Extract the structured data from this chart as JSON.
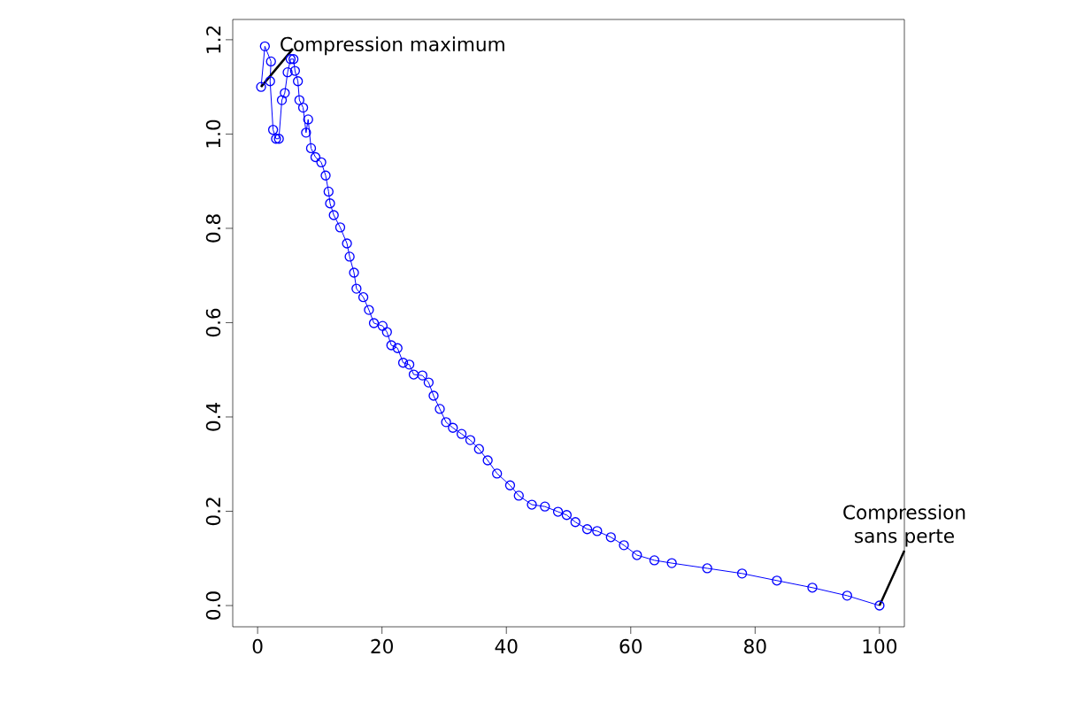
{
  "chart_data": {
    "type": "line",
    "marker": "circle",
    "line_style": "solid",
    "x": [
      0.56,
      1.17,
      2.15,
      2.01,
      2.49,
      2.96,
      3.42,
      3.9,
      4.37,
      4.83,
      5.31,
      5.77,
      6.01,
      6.48,
      6.72,
      7.32,
      7.79,
      8.13,
      8.59,
      9.3,
      10.24,
      10.94,
      11.41,
      11.65,
      12.25,
      13.28,
      14.37,
      14.8,
      15.5,
      15.9,
      17.0,
      17.9,
      18.7,
      20.1,
      20.8,
      21.5,
      22.5,
      23.4,
      24.4,
      25.1,
      26.5,
      27.5,
      28.3,
      29.3,
      30.3,
      31.4,
      32.8,
      34.2,
      35.6,
      37.0,
      38.5,
      40.6,
      42.0,
      44.1,
      46.2,
      48.3,
      49.7,
      51.1,
      53.0,
      54.6,
      56.8,
      58.9,
      61.0,
      63.8,
      66.6,
      72.3,
      77.9,
      83.5,
      89.2,
      94.8,
      100
    ],
    "series": [
      {
        "color": "#0000ff",
        "values": [
          1.1,
          1.186,
          1.154,
          1.112,
          1.009,
          0.99,
          0.99,
          1.072,
          1.087,
          1.131,
          1.159,
          1.159,
          1.134,
          1.112,
          1.072,
          1.056,
          1.003,
          1.031,
          0.97,
          0.951,
          0.94,
          0.912,
          0.878,
          0.853,
          0.828,
          0.802,
          0.768,
          0.74,
          0.706,
          0.672,
          0.654,
          0.627,
          0.599,
          0.593,
          0.58,
          0.552,
          0.546,
          0.515,
          0.511,
          0.49,
          0.488,
          0.473,
          0.445,
          0.417,
          0.389,
          0.377,
          0.364,
          0.351,
          0.332,
          0.308,
          0.28,
          0.255,
          0.233,
          0.214,
          0.21,
          0.199,
          0.192,
          0.177,
          0.162,
          0.158,
          0.145,
          0.128,
          0.107,
          0.096,
          0.09,
          0.079,
          0.068,
          0.053,
          0.038,
          0.021,
          0.0
        ]
      }
    ],
    "xlim": [
      -4,
      104
    ],
    "ylim": [
      -0.045,
      1.243
    ],
    "xticks": [
      0,
      20,
      40,
      60,
      80,
      100
    ],
    "yticks": [
      {
        "value": 0,
        "label": "0.0"
      },
      {
        "value": 0.2,
        "label": "0.2"
      },
      {
        "value": 0.4,
        "label": "0.4"
      },
      {
        "value": 0.6,
        "label": "0.6"
      },
      {
        "value": 0.8,
        "label": "0.8"
      },
      {
        "value": 1.0,
        "label": "1.0"
      },
      {
        "value": 1.2,
        "label": "1.2"
      }
    ],
    "annotations": [
      {
        "text": "Compression maximum",
        "x": 0.56,
        "y": 1.1
      },
      {
        "text": "Compression sans perte",
        "x": 100,
        "y": 0.0
      }
    ]
  }
}
